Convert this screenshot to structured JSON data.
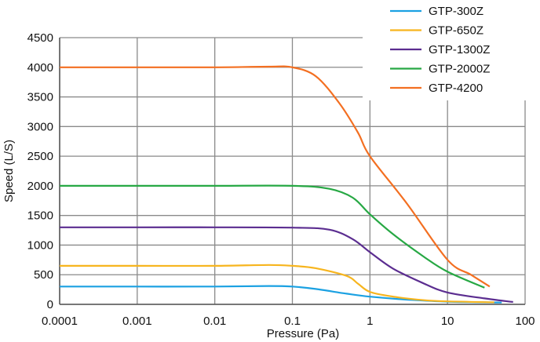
{
  "chart_data": {
    "type": "line",
    "title": "",
    "xlabel": "Pressure (Pa)",
    "ylabel": "Speed (L/S)",
    "x_scale": "log",
    "xlim": [
      0.0001,
      100
    ],
    "ylim": [
      0,
      4500
    ],
    "x_ticks": [
      0.0001,
      0.001,
      0.01,
      0.1,
      1,
      10,
      100
    ],
    "x_tick_labels": [
      "0.0001",
      "0.001",
      "0.01",
      "0.1",
      "1",
      "10",
      "100"
    ],
    "y_ticks": [
      0,
      500,
      1000,
      1500,
      2000,
      2500,
      3000,
      3500,
      4000,
      4500
    ],
    "y_tick_labels": [
      "0",
      "500",
      "1000",
      "1500",
      "2000",
      "2500",
      "3000",
      "3500",
      "4000",
      "4500"
    ],
    "grid": true,
    "legend_position": "top-right",
    "series": [
      {
        "name": "GTP-300Z",
        "color": "#1ba1e2",
        "points": [
          [
            0.0001,
            300
          ],
          [
            0.001,
            300
          ],
          [
            0.01,
            300
          ],
          [
            0.05,
            310
          ],
          [
            0.1,
            300
          ],
          [
            0.2,
            260
          ],
          [
            0.5,
            180
          ],
          [
            1,
            130
          ],
          [
            3,
            80
          ],
          [
            10,
            45
          ],
          [
            50,
            30
          ]
        ]
      },
      {
        "name": "GTP-650Z",
        "color": "#f7b51e",
        "points": [
          [
            0.0001,
            650
          ],
          [
            0.001,
            650
          ],
          [
            0.01,
            650
          ],
          [
            0.05,
            665
          ],
          [
            0.1,
            650
          ],
          [
            0.2,
            610
          ],
          [
            0.5,
            480
          ],
          [
            0.7,
            350
          ],
          [
            1,
            210
          ],
          [
            2,
            130
          ],
          [
            5,
            70
          ],
          [
            10,
            50
          ],
          [
            40,
            35
          ]
        ]
      },
      {
        "name": "GTP-1300Z",
        "color": "#5b2d90",
        "points": [
          [
            0.0001,
            1300
          ],
          [
            0.001,
            1300
          ],
          [
            0.01,
            1300
          ],
          [
            0.1,
            1295
          ],
          [
            0.3,
            1260
          ],
          [
            0.6,
            1100
          ],
          [
            1,
            880
          ],
          [
            2,
            600
          ],
          [
            5,
            350
          ],
          [
            10,
            200
          ],
          [
            30,
            100
          ],
          [
            70,
            40
          ]
        ]
      },
      {
        "name": "GTP-2000Z",
        "color": "#27a844",
        "points": [
          [
            0.0001,
            2000
          ],
          [
            0.001,
            2000
          ],
          [
            0.01,
            2000
          ],
          [
            0.1,
            2000
          ],
          [
            0.3,
            1950
          ],
          [
            0.6,
            1800
          ],
          [
            1,
            1520
          ],
          [
            2,
            1180
          ],
          [
            5,
            800
          ],
          [
            10,
            550
          ],
          [
            30,
            280
          ]
        ]
      },
      {
        "name": "GTP-4200",
        "color": "#f36f21",
        "points": [
          [
            0.0001,
            4000
          ],
          [
            0.001,
            4000
          ],
          [
            0.01,
            4000
          ],
          [
            0.05,
            4010
          ],
          [
            0.1,
            4000
          ],
          [
            0.2,
            3850
          ],
          [
            0.4,
            3400
          ],
          [
            0.7,
            2900
          ],
          [
            1,
            2500
          ],
          [
            3,
            1700
          ],
          [
            10,
            750
          ],
          [
            20,
            500
          ],
          [
            35,
            300
          ]
        ]
      }
    ]
  }
}
